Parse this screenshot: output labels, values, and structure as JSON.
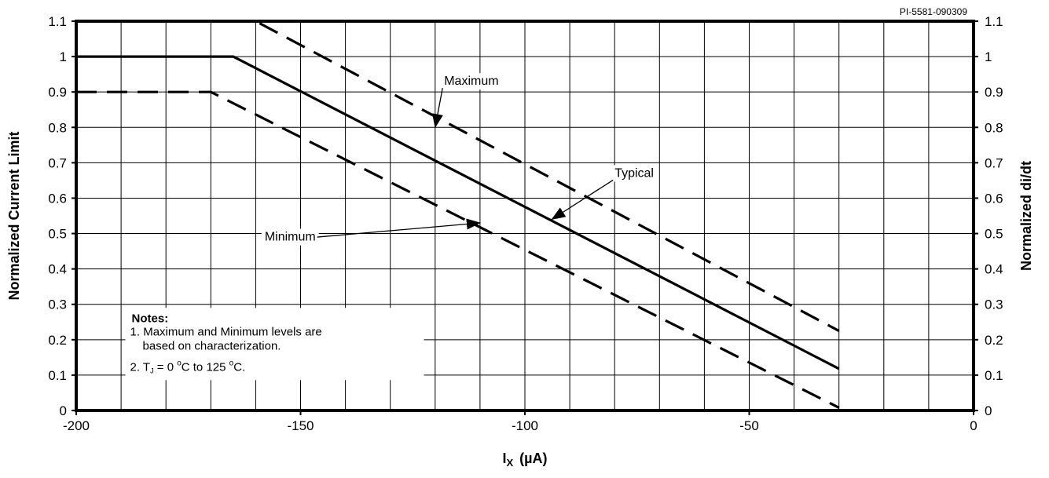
{
  "chart_data": {
    "type": "line",
    "doc_id": "PI-5581-090309",
    "xlabel": "I",
    "xlabel_sub": "X",
    "xlabel_unit": "(µA)",
    "ylabel_left": "Normalized Current Limit",
    "ylabel_right": "Normalized di/dt",
    "xlim": [
      -200,
      0
    ],
    "ylim": [
      0,
      1.1
    ],
    "x_ticks": [
      "-200",
      "-150",
      "-100",
      "-50",
      "0"
    ],
    "x_tick_values": [
      -200,
      -150,
      -100,
      -50,
      0
    ],
    "y_ticks": [
      "0",
      "0.1",
      "0.2",
      "0.3",
      "0.4",
      "0.5",
      "0.6",
      "0.7",
      "0.8",
      "0.9",
      "1",
      "1.1"
    ],
    "y_tick_values": [
      0,
      0.1,
      0.2,
      0.3,
      0.4,
      0.5,
      0.6,
      0.7,
      0.8,
      0.9,
      1,
      1.1
    ],
    "grid": true,
    "series": [
      {
        "name": "Maximum",
        "style": "dashed",
        "x": [
          -200,
          -160,
          -30
        ],
        "y": [
          1.1,
          1.1,
          0.225
        ]
      },
      {
        "name": "Typical",
        "style": "solid",
        "x": [
          -200,
          -165,
          -30
        ],
        "y": [
          1.0,
          1.0,
          0.118
        ]
      },
      {
        "name": "Minimum",
        "style": "dashed",
        "x": [
          -200,
          -170,
          -30
        ],
        "y": [
          0.9,
          0.9,
          0.008
        ]
      }
    ],
    "annotations": [
      {
        "label": "Maximum",
        "text_x": -118,
        "text_y": 0.92,
        "arrow_to_x": -120,
        "arrow_to_y": 0.8
      },
      {
        "label": "Typical",
        "text_x": -80,
        "text_y": 0.66,
        "arrow_to_x": -94,
        "arrow_to_y": 0.54
      },
      {
        "label": "Minimum",
        "text_x": -158,
        "text_y": 0.48,
        "arrow_to_x": -110,
        "arrow_to_y": 0.53
      }
    ],
    "notes": {
      "heading": "Notes:",
      "line1": "1. Maximum and Minimum levels are",
      "line2": "based on characterization.",
      "line3_prefix": "2. T",
      "line3_sub": "J",
      "line3_mid": " = 0 ",
      "line3_deg1": "o",
      "line3_rest1": "C to 125 ",
      "line3_deg2": "o",
      "line3_rest2": "C."
    }
  }
}
